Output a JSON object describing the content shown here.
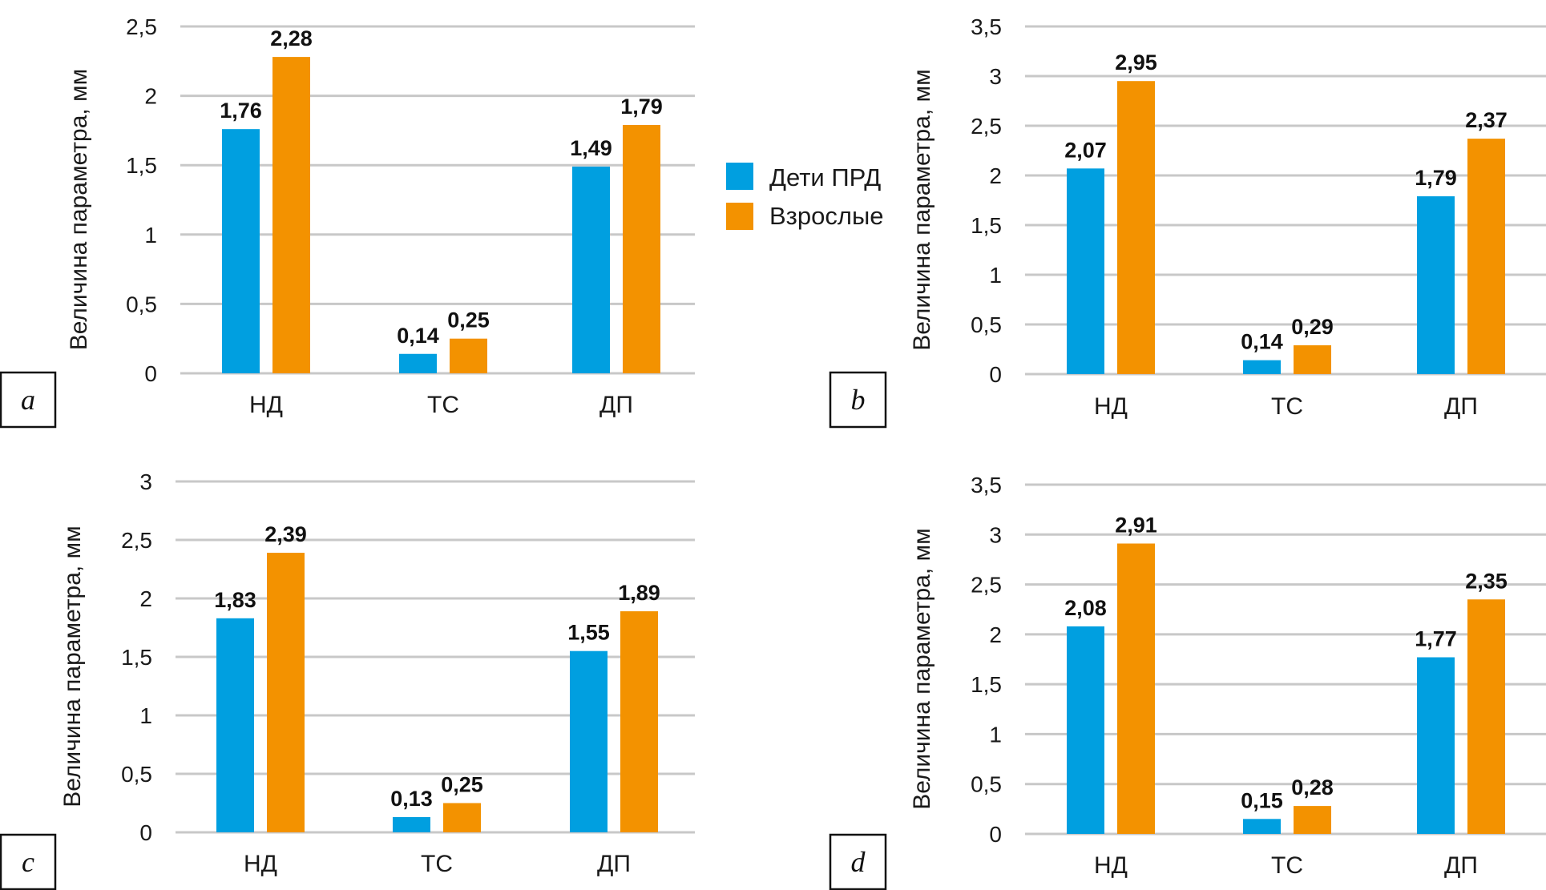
{
  "colors": {
    "series_children": "#009fe0",
    "series_adults": "#f39200",
    "grid": "#c8c8c8"
  },
  "legend": {
    "items": [
      {
        "label": "Дети ПРД",
        "color": "#009fe0"
      },
      {
        "label": "Взрослые",
        "color": "#f39200"
      }
    ],
    "position": "center-between-top-charts"
  },
  "chart_data": [
    {
      "panel": "a",
      "type": "bar",
      "categories": [
        "НД",
        "ТС",
        "ДП"
      ],
      "series": [
        {
          "name": "Дети ПРД",
          "values": [
            1.76,
            0.14,
            1.49
          ],
          "labels": [
            "1,76",
            "0,14",
            "1,49"
          ]
        },
        {
          "name": "Взрослые",
          "values": [
            2.28,
            0.25,
            1.79
          ],
          "labels": [
            "2,28",
            "0,25",
            "1,79"
          ]
        }
      ],
      "ylabel": "Величина параметра, мм",
      "xlabel": "",
      "ylim": [
        0,
        2.5
      ],
      "yticks": [
        "0",
        "0,5",
        "1",
        "1,5",
        "2",
        "2,5"
      ],
      "grid": true
    },
    {
      "panel": "b",
      "type": "bar",
      "categories": [
        "НД",
        "ТС",
        "ДП"
      ],
      "series": [
        {
          "name": "Дети ПРД",
          "values": [
            2.07,
            0.14,
            1.79
          ],
          "labels": [
            "2,07",
            "0,14",
            "1,79"
          ]
        },
        {
          "name": "Взрослые",
          "values": [
            2.95,
            0.29,
            2.37
          ],
          "labels": [
            "2,95",
            "0,29",
            "2,37"
          ]
        }
      ],
      "ylabel": "Величина параметра, мм",
      "xlabel": "",
      "ylim": [
        0,
        3.5
      ],
      "yticks": [
        "0",
        "0,5",
        "1",
        "1,5",
        "2",
        "2,5",
        "3",
        "3,5"
      ],
      "grid": true
    },
    {
      "panel": "c",
      "type": "bar",
      "categories": [
        "НД",
        "ТС",
        "ДП"
      ],
      "series": [
        {
          "name": "Дети ПРД",
          "values": [
            1.83,
            0.13,
            1.55
          ],
          "labels": [
            "1,83",
            "0,13",
            "1,55"
          ]
        },
        {
          "name": "Взрослые",
          "values": [
            2.39,
            0.25,
            1.89
          ],
          "labels": [
            "2,39",
            "0,25",
            "1,89"
          ]
        }
      ],
      "ylabel": "Величина параметра, мм",
      "xlabel": "",
      "ylim": [
        0,
        3
      ],
      "yticks": [
        "0",
        "0,5",
        "1",
        "1,5",
        "2",
        "2,5",
        "3"
      ],
      "grid": true
    },
    {
      "panel": "d",
      "type": "bar",
      "categories": [
        "НД",
        "ТС",
        "ДП"
      ],
      "series": [
        {
          "name": "Дети ПРД",
          "values": [
            2.08,
            0.15,
            1.77
          ],
          "labels": [
            "2,08",
            "0,15",
            "1,77"
          ]
        },
        {
          "name": "Взрослые",
          "values": [
            2.91,
            0.28,
            2.35
          ],
          "labels": [
            "2,91",
            "0,28",
            "2,35"
          ]
        }
      ],
      "ylabel": "Величина параметра, мм",
      "xlabel": "",
      "ylim": [
        0,
        3.5
      ],
      "yticks": [
        "0",
        "0,5",
        "1",
        "1,5",
        "2",
        "2,5",
        "3",
        "3,5"
      ],
      "grid": true
    }
  ]
}
